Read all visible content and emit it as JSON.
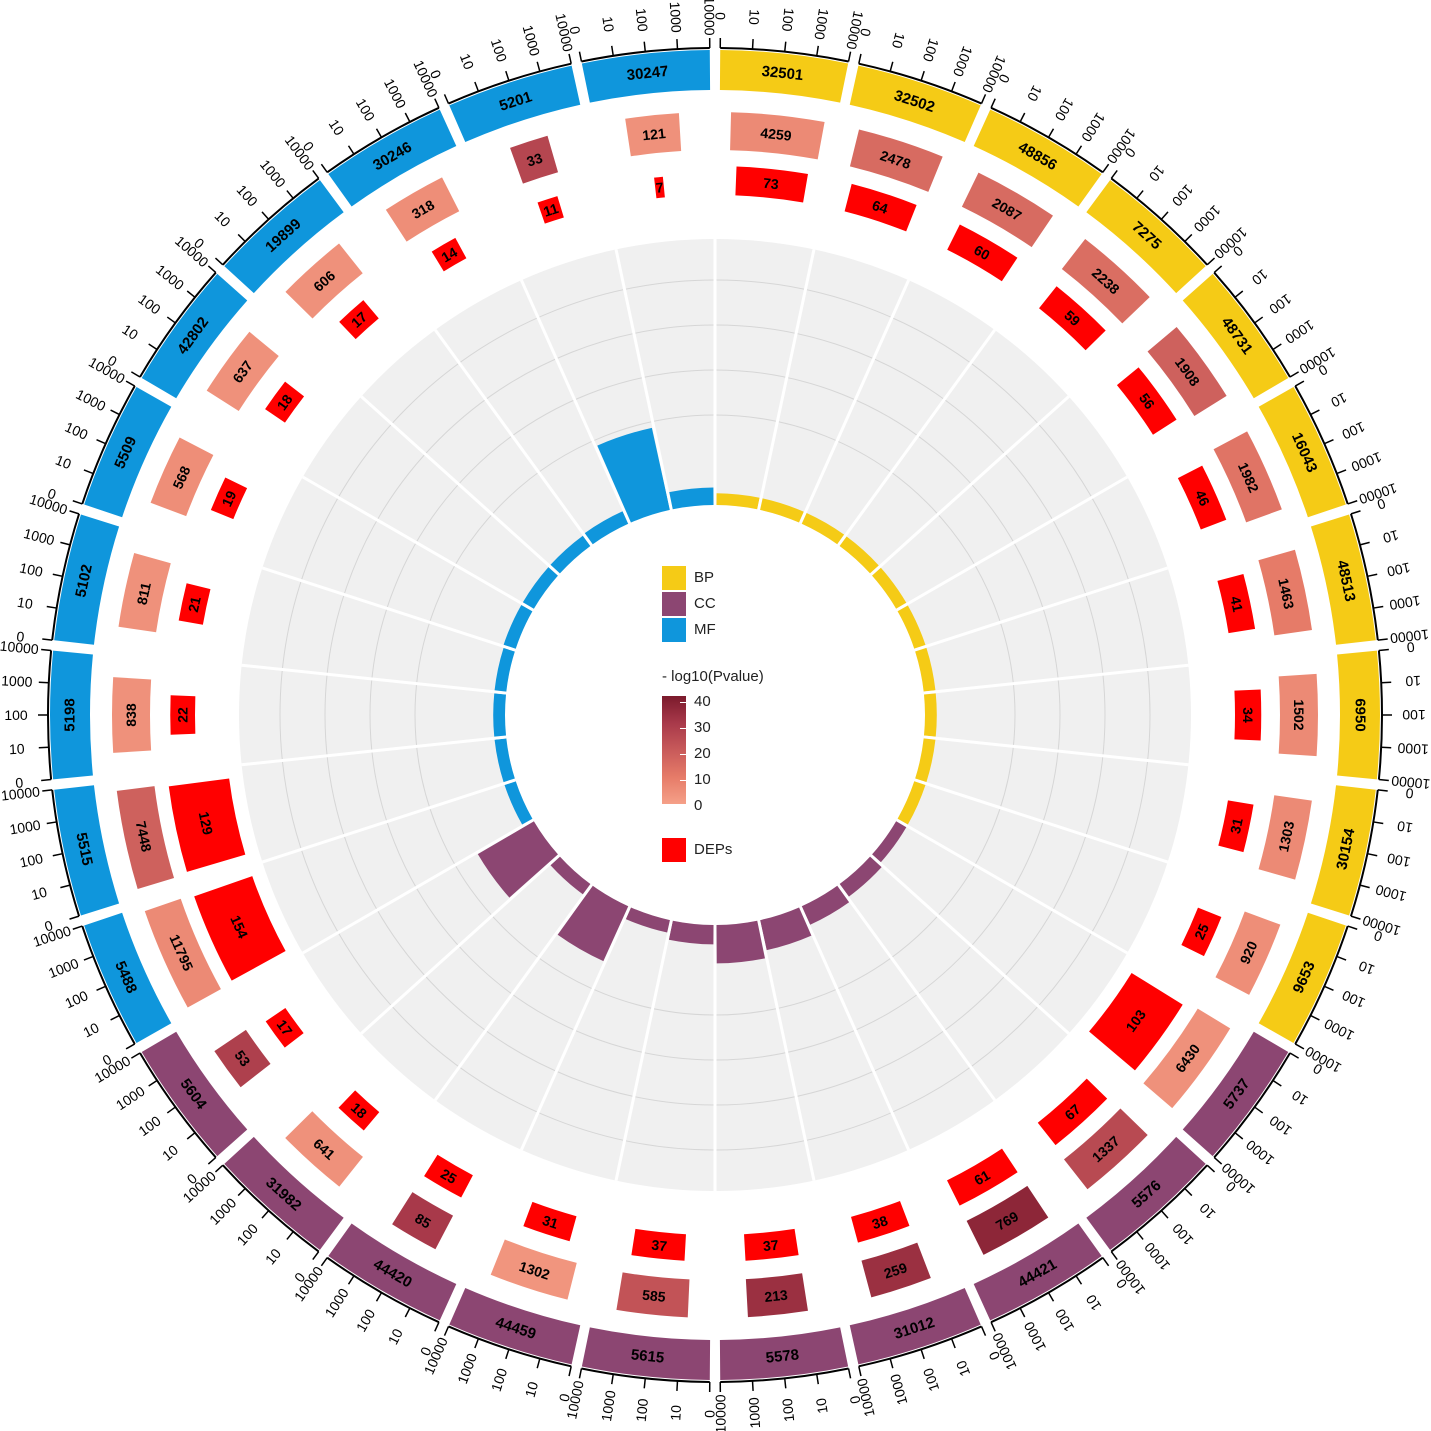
{
  "chart_data": {
    "type": "circos",
    "categories": [
      "BP",
      "CC",
      "MF"
    ],
    "category_colors": {
      "BP": "#f5cb16",
      "CC": "#8c4672",
      "MF": "#0f96dc"
    },
    "outer_ticks": [
      "0",
      "10",
      "100",
      "1000",
      "10000"
    ],
    "sectors": [
      {
        "id": "32501",
        "category": "BP",
        "bg": 4259,
        "bg_p": 6,
        "dep": 73,
        "rich": 0.4
      },
      {
        "id": "32502",
        "category": "BP",
        "bg": 2478,
        "bg_p": 15,
        "dep": 64,
        "rich": 0.4
      },
      {
        "id": "48856",
        "category": "BP",
        "bg": 2087,
        "bg_p": 15,
        "dep": 60,
        "rich": 0.4
      },
      {
        "id": "7275",
        "category": "BP",
        "bg": 2238,
        "bg_p": 14,
        "dep": 59,
        "rich": 0.4
      },
      {
        "id": "48731",
        "category": "BP",
        "bg": 1908,
        "bg_p": 18,
        "dep": 56,
        "rich": 0.4
      },
      {
        "id": "16043",
        "category": "BP",
        "bg": 1982,
        "bg_p": 12,
        "dep": 46,
        "rich": 0.4
      },
      {
        "id": "48513",
        "category": "BP",
        "bg": 1463,
        "bg_p": 10,
        "dep": 41,
        "rich": 0.4
      },
      {
        "id": "6950",
        "category": "BP",
        "bg": 1502,
        "bg_p": 6,
        "dep": 34,
        "rich": 0.4
      },
      {
        "id": "30154",
        "category": "BP",
        "bg": 1303,
        "bg_p": 6,
        "dep": 31,
        "rich": 0.4
      },
      {
        "id": "9653",
        "category": "BP",
        "bg": 920,
        "bg_p": 5,
        "dep": 25,
        "rich": 0.4
      },
      {
        "id": "5737",
        "category": "CC",
        "bg": 6430,
        "bg_p": 4,
        "dep": 103,
        "rich": 0.4
      },
      {
        "id": "5576",
        "category": "CC",
        "bg": 1337,
        "bg_p": 25,
        "dep": 67,
        "rich": 0.8
      },
      {
        "id": "44421",
        "category": "CC",
        "bg": 769,
        "bg_p": 36,
        "dep": 61,
        "rich": 1.3
      },
      {
        "id": "31012",
        "category": "CC",
        "bg": 259,
        "bg_p": 33,
        "dep": 38,
        "rich": 2.4
      },
      {
        "id": "5578",
        "category": "CC",
        "bg": 213,
        "bg_p": 33,
        "dep": 37,
        "rich": 3.2
      },
      {
        "id": "5615",
        "category": "CC",
        "bg": 585,
        "bg_p": 22,
        "dep": 37,
        "rich": 1.2
      },
      {
        "id": "44459",
        "category": "CC",
        "bg": 1302,
        "bg_p": 3,
        "dep": 31,
        "rich": 0.5
      },
      {
        "id": "44420",
        "category": "CC",
        "bg": 85,
        "bg_p": 30,
        "dep": 25,
        "rich": 5.5
      },
      {
        "id": "31982",
        "category": "CC",
        "bg": 641,
        "bg_p": 4,
        "dep": 18,
        "rich": 0.5
      },
      {
        "id": "5604",
        "category": "CC",
        "bg": 53,
        "bg_p": 28,
        "dep": 17,
        "rich": 6.0
      },
      {
        "id": "5488",
        "category": "MF",
        "bg": 11795,
        "bg_p": 6,
        "dep": 154,
        "rich": 0.4
      },
      {
        "id": "5515",
        "category": "MF",
        "bg": 7448,
        "bg_p": 18,
        "dep": 129,
        "rich": 0.4
      },
      {
        "id": "5198",
        "category": "MF",
        "bg": 838,
        "bg_p": 4,
        "dep": 22,
        "rich": 0.4
      },
      {
        "id": "5102",
        "category": "MF",
        "bg": 811,
        "bg_p": 4,
        "dep": 21,
        "rich": 0.4
      },
      {
        "id": "5509",
        "category": "MF",
        "bg": 568,
        "bg_p": 5,
        "dep": 19,
        "rich": 0.5
      },
      {
        "id": "42802",
        "category": "MF",
        "bg": 637,
        "bg_p": 4,
        "dep": 18,
        "rich": 0.5
      },
      {
        "id": "19899",
        "category": "MF",
        "bg": 606,
        "bg_p": 4,
        "dep": 17,
        "rich": 0.5
      },
      {
        "id": "30246",
        "category": "MF",
        "bg": 318,
        "bg_p": 5,
        "dep": 14,
        "rich": 0.6
      },
      {
        "id": "5201",
        "category": "MF",
        "bg": 33,
        "bg_p": 26,
        "dep": 11,
        "rich": 8.0
      },
      {
        "id": "30247",
        "category": "MF",
        "bg": 121,
        "bg_p": 4,
        "dep": 7,
        "rich": 1.0
      }
    ],
    "legend": {
      "items": [
        {
          "label": "BP",
          "color": "#f5cb16"
        },
        {
          "label": "CC",
          "color": "#8c4672"
        },
        {
          "label": "MF",
          "color": "#0f96dc"
        }
      ],
      "gradient_title": "- log10(Pvalue)",
      "gradient_ticks": [
        "40",
        "30",
        "20",
        "10",
        "0"
      ],
      "gradient_colors": [
        "#f5a088",
        "#e67b68",
        "#c85a5a",
        "#a8394a",
        "#7b1a2c"
      ],
      "deps_label": "DEPs",
      "deps_color": "#ff0000"
    }
  }
}
